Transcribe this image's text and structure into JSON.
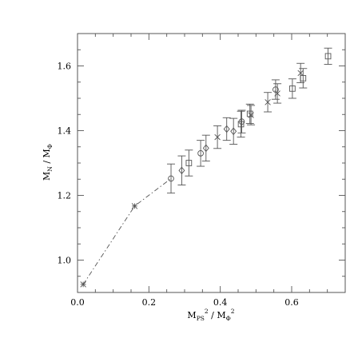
{
  "chart_data": {
    "type": "scatter",
    "title": "",
    "xlabel": "M_PS^2 / M_Φ^2",
    "ylabel": "M_N / M_Φ",
    "xlim": [
      0.0,
      0.75
    ],
    "ylim": [
      0.9,
      1.7
    ],
    "x_ticks": [
      0.0,
      0.2,
      0.4,
      0.6
    ],
    "x_tick_labels": [
      "0.0",
      "0.2",
      "0.4",
      "0.6"
    ],
    "y_ticks": [
      1.0,
      1.2,
      1.4,
      1.6
    ],
    "y_tick_labels": [
      "1.0",
      "1.2",
      "1.4",
      "1.6"
    ],
    "grid": false,
    "x_minor_step": 0.05,
    "y_minor_step": 0.05,
    "series": [
      {
        "marker": "circle",
        "points": [
          {
            "x": 0.262,
            "y": 1.252,
            "err": 0.045
          },
          {
            "x": 0.345,
            "y": 1.33,
            "err": 0.04
          },
          {
            "x": 0.46,
            "y": 1.428,
            "err": 0.035
          },
          {
            "x": 0.555,
            "y": 1.527,
            "err": 0.03
          }
        ]
      },
      {
        "marker": "diamond",
        "points": [
          {
            "x": 0.292,
            "y": 1.277,
            "err": 0.045
          },
          {
            "x": 0.36,
            "y": 1.346,
            "err": 0.04
          },
          {
            "x": 0.418,
            "y": 1.405,
            "err": 0.035
          },
          {
            "x": 0.437,
            "y": 1.398,
            "err": 0.04
          }
        ]
      },
      {
        "marker": "square",
        "points": [
          {
            "x": 0.312,
            "y": 1.3,
            "err": 0.04
          },
          {
            "x": 0.458,
            "y": 1.42,
            "err": 0.04
          },
          {
            "x": 0.483,
            "y": 1.452,
            "err": 0.03
          },
          {
            "x": 0.602,
            "y": 1.53,
            "err": 0.03
          },
          {
            "x": 0.632,
            "y": 1.562,
            "err": 0.03
          },
          {
            "x": 0.702,
            "y": 1.63,
            "err": 0.025
          }
        ]
      },
      {
        "marker": "cross",
        "points": [
          {
            "x": 0.392,
            "y": 1.38,
            "err": 0.035
          },
          {
            "x": 0.486,
            "y": 1.448,
            "err": 0.03
          },
          {
            "x": 0.533,
            "y": 1.488,
            "err": 0.03
          },
          {
            "x": 0.56,
            "y": 1.515,
            "err": 0.03
          },
          {
            "x": 0.625,
            "y": 1.578,
            "err": 0.03
          }
        ]
      },
      {
        "marker": "asterisk",
        "points": [
          {
            "x": 0.016,
            "y": 0.925,
            "err": 0
          },
          {
            "x": 0.16,
            "y": 1.167,
            "err": 0
          }
        ]
      }
    ],
    "extrapolation_line": {
      "style": "dash-dot",
      "points": [
        {
          "x": 0.016,
          "y": 0.925
        },
        {
          "x": 0.16,
          "y": 1.167
        },
        {
          "x": 0.262,
          "y": 1.252
        }
      ]
    }
  }
}
